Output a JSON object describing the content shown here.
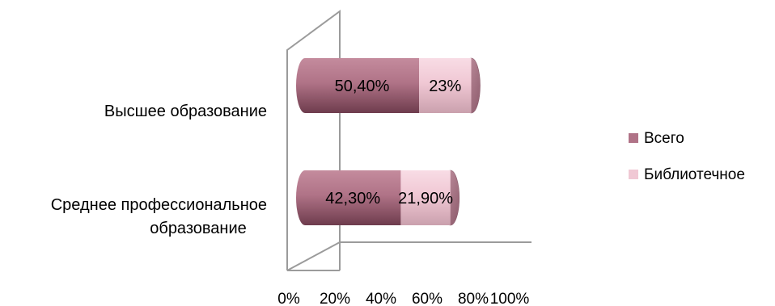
{
  "chart_data": {
    "type": "bar",
    "orientation": "horizontal",
    "stacked": true,
    "style": "3d-cylinder",
    "categories": [
      "Высшее образование",
      "Среднее профессиональное образование"
    ],
    "category_lines": [
      [
        "Высшее образование"
      ],
      [
        "Среднее профессиональное",
        "образование"
      ]
    ],
    "series": [
      {
        "name": "Всего",
        "values": [
          50.4,
          42.3
        ],
        "labels": [
          "50,40%",
          "42,30%"
        ],
        "color": "#b07387"
      },
      {
        "name": "Библиотечное",
        "values": [
          23,
          21.9
        ],
        "labels": [
          "23%",
          "21,90%"
        ],
        "color": "#f0c8d4"
      }
    ],
    "xlim": [
      0,
      100
    ],
    "x_ticks": [
      "0%",
      "20%",
      "40%",
      "60%",
      "80%",
      "100%"
    ],
    "legend_position": "right",
    "grid": false
  }
}
